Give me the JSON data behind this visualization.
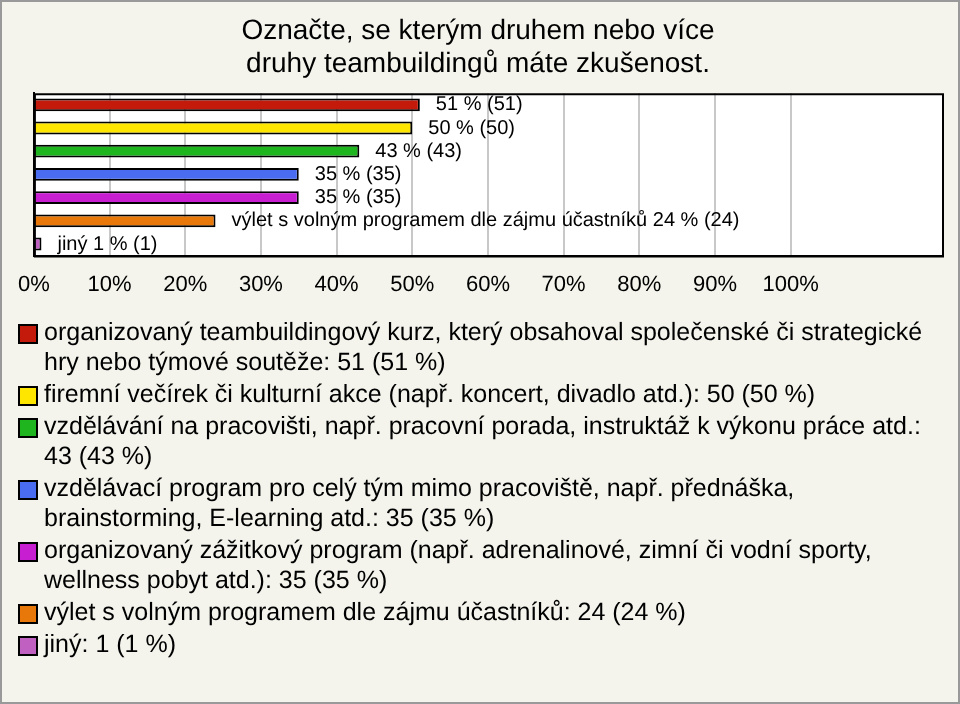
{
  "chart_data": {
    "type": "bar",
    "orientation": "horizontal",
    "title": "Označte, se kterým druhem nebo více druhy teambuildingů máte zkušenost.",
    "categories": [
      null,
      null,
      null,
      null,
      null,
      null,
      null
    ],
    "series": [
      {
        "name": "organizovaný teambuildingový kurz, který obsahoval společenské či strategické hry nebo týmové soutěže: 51 (51 %)",
        "color": "#c41a0c",
        "values": [
          51,
          null,
          null,
          null,
          null,
          null,
          null
        ],
        "value_labels": [
          "51 % (51)",
          null,
          null,
          null,
          null,
          null,
          null
        ]
      },
      {
        "name": "firemní večírek či kulturní akce (např. koncert, divadlo atd.): 50 (50 %)",
        "color": "#ffe600",
        "values": [
          null,
          50,
          null,
          null,
          null,
          null,
          null
        ],
        "value_labels": [
          null,
          "50 % (50)",
          null,
          null,
          null,
          null,
          null
        ]
      },
      {
        "name": "vzdělávání na pracovišti, např. pracovní porada, instruktáž k výkonu práce atd.: 43 (43 %)",
        "color": "#1fb51f",
        "values": [
          null,
          null,
          43,
          null,
          null,
          null,
          null
        ],
        "value_labels": [
          null,
          null,
          "43 % (43)",
          null,
          null,
          null,
          null
        ]
      },
      {
        "name": "vzdělávací program pro celý tým mimo pracoviště, např. přednáška, brainstorming, E-learning atd.: 35 (35 %)",
        "color": "#4a6cf0",
        "values": [
          null,
          null,
          null,
          35,
          null,
          null,
          null
        ],
        "value_labels": [
          null,
          null,
          null,
          "35 % (35)",
          null,
          null,
          null
        ]
      },
      {
        "name": "organizovaný zážitkový program (např. adrenalinové, zimní či vodní sporty, wellness pobyt atd.): 35 (35 %)",
        "color": "#c81ed2",
        "values": [
          null,
          null,
          null,
          null,
          35,
          null,
          null
        ],
        "value_labels": [
          null,
          null,
          null,
          null,
          "35 % (35)",
          null,
          null
        ]
      },
      {
        "name": "výlet s volným programem dle zájmu účastníků: 24 (24 %)",
        "color": "#e8780a",
        "values": [
          null,
          null,
          null,
          null,
          null,
          24,
          null
        ],
        "value_labels": [
          null,
          null,
          null,
          null,
          null,
          "výlet s volným programem dle zájmu účastníků 24 % (24)",
          null
        ]
      },
      {
        "name": "jiný: 1 (1 %)",
        "color": "#c060c0",
        "values": [
          null,
          null,
          null,
          null,
          null,
          null,
          1
        ],
        "value_labels": [
          null,
          null,
          null,
          null,
          null,
          null,
          "jiný 1 % (1)"
        ]
      }
    ],
    "xlim": [
      0,
      120
    ],
    "xticks": [
      {
        "value": 0,
        "label": "0%"
      },
      {
        "value": 10,
        "label": "10%"
      },
      {
        "value": 20,
        "label": "20%"
      },
      {
        "value": 30,
        "label": "30%"
      },
      {
        "value": 40,
        "label": "40%"
      },
      {
        "value": 50,
        "label": "50%"
      },
      {
        "value": 60,
        "label": "60%"
      },
      {
        "value": 70,
        "label": "70%"
      },
      {
        "value": 80,
        "label": "80%"
      },
      {
        "value": 90,
        "label": "90%"
      },
      {
        "value": 100,
        "label": "100%"
      }
    ],
    "grid": "x",
    "legend": "bottom",
    "tick_labels": "x"
  }
}
